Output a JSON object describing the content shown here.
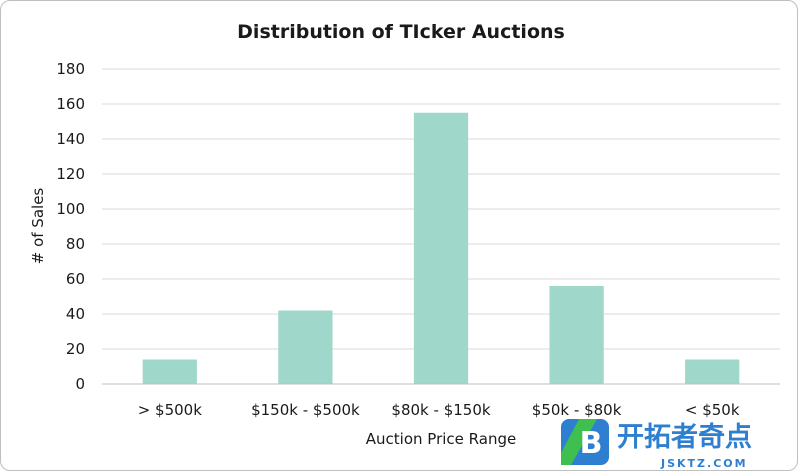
{
  "chart_data": {
    "type": "bar",
    "title": "Distribution of TIcker Auctions",
    "xlabel": "Auction Price Range",
    "ylabel": "# of Sales",
    "categories": [
      "> $500k",
      "$150k - $500k",
      "$80k - $150k",
      "$50k - $80k",
      "< $50k"
    ],
    "values": [
      14,
      42,
      155,
      56,
      14
    ],
    "ylim": [
      0,
      180
    ],
    "yticks": [
      0,
      20,
      40,
      60,
      80,
      100,
      120,
      140,
      160,
      180
    ],
    "grid": true,
    "bar_color": "#9fd8ca"
  },
  "watermark": {
    "logo_letter": "B",
    "brand_text": "开拓者奇点",
    "domain_text": "JSKTZ.COM"
  }
}
